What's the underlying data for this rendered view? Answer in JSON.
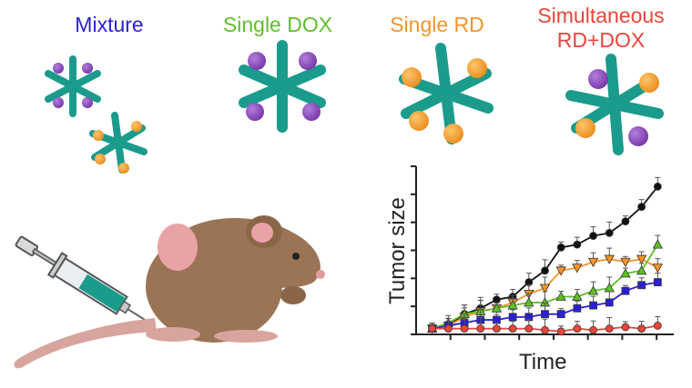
{
  "groups": [
    {
      "label": "Mixture",
      "color": "#2b1fd6"
    },
    {
      "label": "Single DOX",
      "color": "#5fbf2a"
    },
    {
      "label": "Single RD",
      "color": "#f2952a"
    },
    {
      "label": "Simultaneous\nRD+DOX",
      "color": "#e8453c"
    }
  ],
  "colors": {
    "star": "#1a9b8c",
    "dox_ball": "#8e4bbf",
    "rd_ball": "#f2a33a",
    "mouse": "#9a7454",
    "ear": "#e9a3a6"
  },
  "icons": [
    "syringe-icon",
    "mouse-icon",
    "nanoparticle-star-icon"
  ],
  "chart_data": {
    "type": "line",
    "xlabel": "Time",
    "ylabel": "Tumor size",
    "x": [
      1,
      2,
      3,
      4,
      5,
      6,
      7,
      8,
      9,
      10,
      11,
      12,
      13,
      14,
      15
    ],
    "ylim": [
      0,
      5.8
    ],
    "grid": false,
    "series": [
      {
        "color": "#111111",
        "marker": "circle",
        "values": [
          0.2,
          0.3,
          0.7,
          0.9,
          1.2,
          1.3,
          1.8,
          2.2,
          3.0,
          3.1,
          3.4,
          3.5,
          3.9,
          4.4,
          5.1
        ]
      },
      {
        "color": "#f2952a",
        "marker": "triangle-down",
        "values": [
          0.2,
          0.3,
          0.6,
          0.8,
          0.9,
          1.1,
          1.4,
          1.6,
          2.2,
          2.3,
          2.5,
          2.6,
          2.5,
          2.6,
          2.3
        ]
      },
      {
        "color": "#5fbf2a",
        "marker": "triangle-up",
        "values": [
          0.2,
          0.4,
          0.7,
          0.8,
          0.9,
          1.0,
          1.1,
          1.1,
          1.3,
          1.3,
          1.5,
          1.6,
          2.1,
          2.2,
          3.1
        ]
      },
      {
        "color": "#2b1fd6",
        "marker": "square",
        "values": [
          0.2,
          0.3,
          0.4,
          0.5,
          0.5,
          0.6,
          0.6,
          0.7,
          0.7,
          0.9,
          1.0,
          1.1,
          1.5,
          1.7,
          1.8
        ]
      },
      {
        "color": "#e8453c",
        "marker": "circle",
        "values": [
          0.2,
          0.2,
          0.2,
          0.2,
          0.2,
          0.2,
          0.2,
          0.15,
          0.1,
          0.2,
          0.15,
          0.2,
          0.25,
          0.2,
          0.3
        ]
      }
    ]
  }
}
